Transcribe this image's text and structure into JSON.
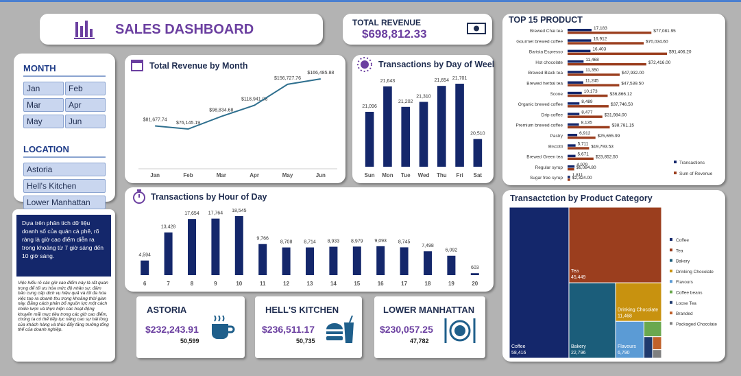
{
  "header": {
    "title": "SALES DASHBOARD"
  },
  "total_revenue": {
    "label": "TOTAL REVENUE",
    "value": "$698,812.33"
  },
  "filters": {
    "month": {
      "title": "MONTH",
      "options": [
        "Jan",
        "Feb",
        "Mar",
        "Apr",
        "May",
        "Jun"
      ]
    },
    "location": {
      "title": "LOCATION",
      "options": [
        "Astoria",
        "Hell's Kitchen",
        "Lower Manhattan"
      ]
    }
  },
  "insight": {
    "highlight": "Dựa trên phân tích dữ liệu doanh số của quán cà phê, rõ ràng là giờ cao điểm diễn ra trong khoảng từ 7 giờ sáng đến 10 giờ sáng.",
    "body": "Việc hiểu rõ các giờ cao điểm này là rất quan trọng để tối ưu hóa mức độ nhân sự, đảm bảo cung cấp dịch vụ hiệu quả và tối đa hóa việc tạo ra doanh thu trong khoảng thời gian này. Bằng cách phân bổ nguồn lực một cách chiến lược và thực hiện các hoạt động khuyến mãi mục tiêu trong các giờ cao điểm, chúng ta có thể tiếp tục nâng cao sự hài lòng của khách hàng và thúc đẩy tăng trưởng tổng thể của doanh nghiệp."
  },
  "stores": [
    {
      "name": "ASTORIA",
      "revenue": "$232,243.91",
      "transactions": "50,599"
    },
    {
      "name": "HELL'S KITCHEN",
      "revenue": "$236,511.17",
      "transactions": "50,735"
    },
    {
      "name": "LOWER MANHATTAN",
      "revenue": "$230,057.25",
      "transactions": "47,782"
    }
  ],
  "chart_data": [
    {
      "type": "line",
      "title": "Total Revenue by Month",
      "color": "#2e6f8e",
      "categories": [
        "Jan",
        "Feb",
        "Mar",
        "Apr",
        "May",
        "Jun"
      ],
      "values": [
        81677.74,
        76145.19,
        98834.68,
        118941.08,
        156727.76,
        166485.88
      ],
      "value_labels": [
        "$81,677.74",
        "$76,145.19",
        "$98,834.68",
        "$118,941.08",
        "$156,727.76",
        "$166,485.88"
      ]
    },
    {
      "type": "bar",
      "title": "Transactions by Day of Week",
      "color": "#14276b",
      "categories": [
        "Sun",
        "Mon",
        "Tue",
        "Wed",
        "Thu",
        "Fri",
        "Sat"
      ],
      "values": [
        21096,
        21643,
        21202,
        21310,
        21654,
        21701,
        20510
      ],
      "value_labels": [
        "21,096",
        "21,643",
        "21,202",
        "21,310",
        "21,654",
        "21,701",
        "20,510"
      ]
    },
    {
      "type": "bar",
      "title": "Transactions by Hour of Day",
      "color": "#14276b",
      "categories": [
        "6",
        "7",
        "8",
        "9",
        "10",
        "11",
        "12",
        "13",
        "14",
        "15",
        "16",
        "17",
        "18",
        "19",
        "20"
      ],
      "values": [
        4594,
        13428,
        17654,
        17764,
        18545,
        9766,
        8708,
        8714,
        8933,
        8979,
        9093,
        8745,
        7498,
        6092,
        603
      ],
      "value_labels": [
        "4,594",
        "13,428",
        "17,654",
        "17,764",
        "18,545",
        "9,766",
        "8,708",
        "8,714",
        "8,933",
        "8,979",
        "9,093",
        "8,745",
        "7,498",
        "6,092",
        "603"
      ]
    },
    {
      "type": "bar",
      "orientation": "horizontal",
      "title": "TOP 15 PRODUCT",
      "categories": [
        "Brewed Chai tea",
        "Gourmet brewed coffee",
        "Barista Espresso",
        "Hot chocolate",
        "Brewed Black tea",
        "Brewed herbal tea",
        "Scone",
        "Organic brewed coffee",
        "Drip coffee",
        "Premium brewed coffee",
        "Pastry",
        "Biscotti",
        "Brewed Green tea",
        "Regular syrup",
        "Sugar free syrup"
      ],
      "series": [
        {
          "name": "Transactions",
          "color": "#14276b",
          "values": [
            17183,
            16912,
            16403,
            11468,
            11350,
            11245,
            10173,
            8489,
            8477,
            8135,
            6912,
            5711,
            5671,
            4979,
            1811
          ],
          "value_labels": [
            "17,183",
            "16,912",
            "16,403",
            "11,468",
            "11,350",
            "11,245",
            "10,173",
            "8,489",
            "8,477",
            "8,135",
            "6,912",
            "5,711",
            "5,671",
            "4,979",
            "1,811"
          ]
        },
        {
          "name": "Sum of Revenue",
          "color": "#9b3e1e",
          "axis": "y2",
          "values": [
            77081.95,
            70034.6,
            91406.2,
            72416.0,
            47932.0,
            47539.5,
            36866.12,
            37746.5,
            31984.0,
            38781.15,
            25655.99,
            19793.53,
            23852.5,
            6084.8,
            2324.0
          ],
          "value_labels": [
            "$77,081.95",
            "$70,034.60",
            "$91,406.20",
            "$72,416.00",
            "$47,932.00",
            "$47,539.50",
            "$36,866.12",
            "$37,746.50",
            "$31,984.00",
            "$38,781.15",
            "$25,655.99",
            "$19,793.53",
            "$23,852.50",
            "$6,084.80",
            "$2,324.00"
          ]
        }
      ]
    },
    {
      "type": "treemap",
      "title": "Transactction by Product Category",
      "categories": [
        "Coffee",
        "Tea",
        "Bakery",
        "Drinking Chocolate",
        "Flavours",
        "Coffee beans",
        "Loose Tea",
        "Branded",
        "Packaged Chocolate"
      ],
      "values": [
        58416,
        45449,
        22796,
        11468,
        6790,
        1753,
        1210,
        747,
        487
      ],
      "value_labels": [
        "58,416",
        "45,449",
        "22,796",
        "11,468",
        "6,790",
        null,
        null,
        null,
        null
      ],
      "colors": [
        "#14276b",
        "#9b3e1e",
        "#1b5d7a",
        "#c8920f",
        "#5b9bd5",
        "#6aa84f",
        "#1f3a6e",
        "#c0612b",
        "#7f7f7f"
      ]
    }
  ]
}
